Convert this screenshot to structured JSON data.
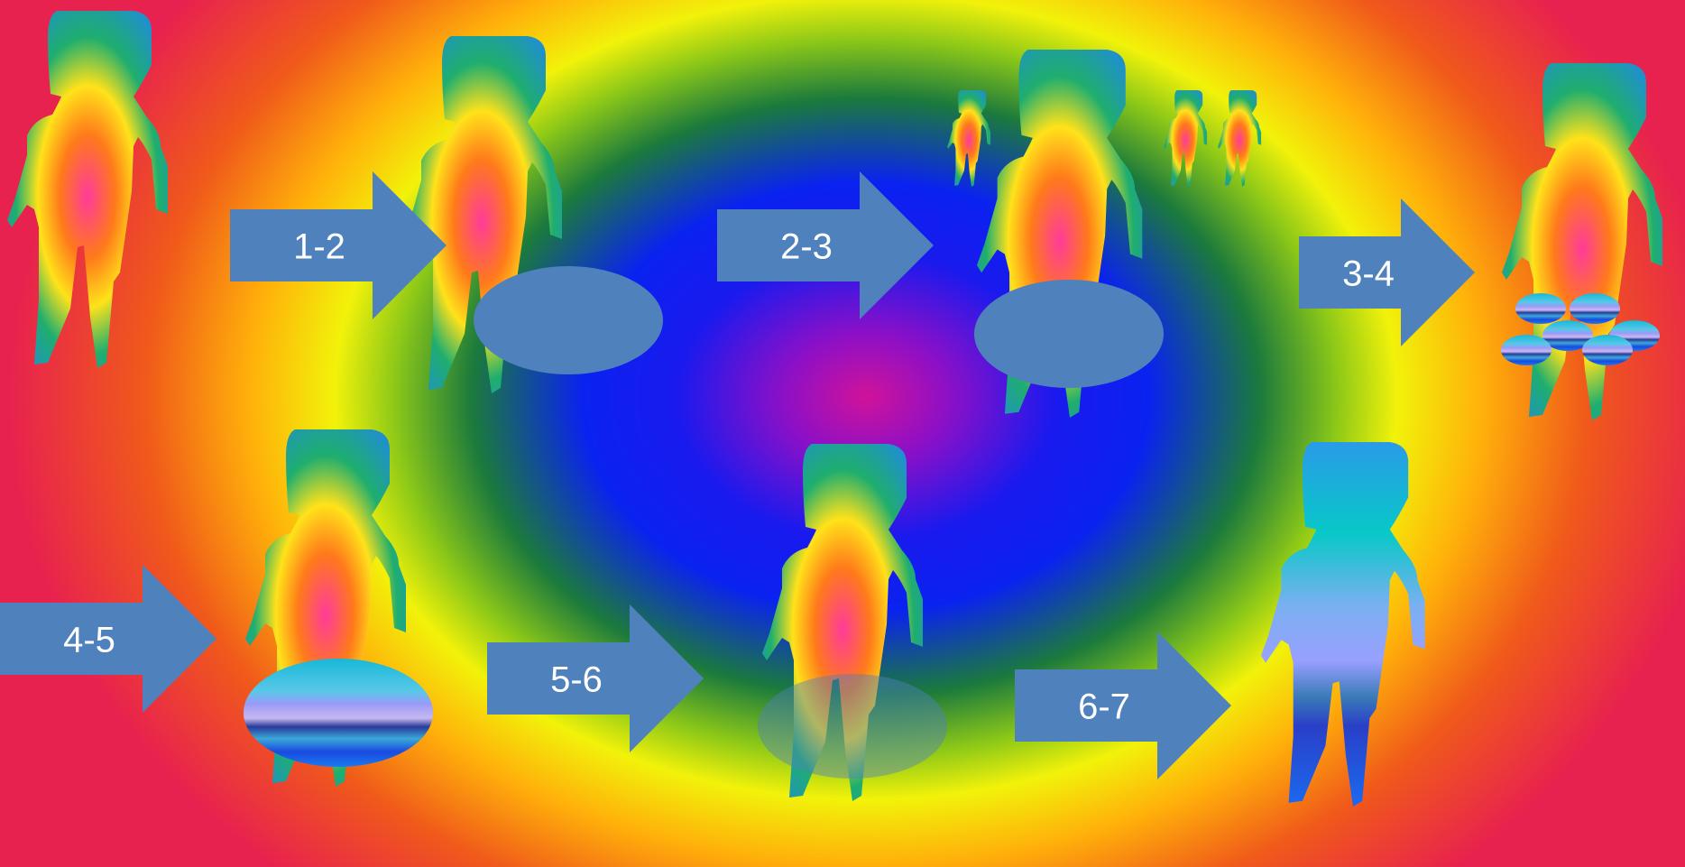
{
  "colors": {
    "arrow_fill": "#4f81bd",
    "arrow_text": "#ffffff",
    "body_gradient": [
      "#ff3b9a",
      "#ff7a1a",
      "#ffe21a",
      "#1fae6e",
      "#1f8fd0"
    ],
    "final_body_gradient": [
      "#2a9be8",
      "#08c8c8",
      "#99a0ff",
      "#1a6af0"
    ]
  },
  "arrows": [
    {
      "label": "1-2"
    },
    {
      "label": "2-3"
    },
    {
      "label": "3-4"
    },
    {
      "label": "4-5"
    },
    {
      "label": "5-6"
    },
    {
      "label": "6-7"
    }
  ],
  "stages": [
    {
      "step": 1,
      "marker": "none",
      "small_figures": 0
    },
    {
      "step": 2,
      "marker": "solid-oval",
      "small_figures": 0
    },
    {
      "step": 3,
      "marker": "solid-oval",
      "small_figures": 3
    },
    {
      "step": 4,
      "marker": "cluster-of-small-ovals",
      "small_figures": 0
    },
    {
      "step": 5,
      "marker": "striped-oval",
      "small_figures": 0
    },
    {
      "step": 6,
      "marker": "translucent-oval",
      "small_figures": 0
    },
    {
      "step": 7,
      "marker": "none",
      "small_figures": 0,
      "recolored": true
    }
  ]
}
